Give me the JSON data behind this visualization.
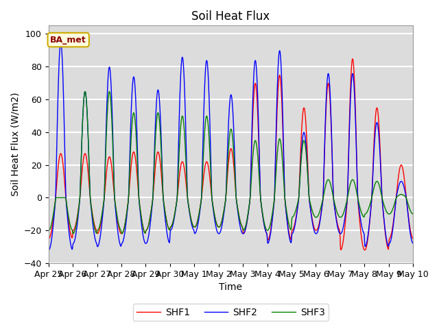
{
  "title": "Soil Heat Flux",
  "xlabel": "Time",
  "ylabel": "Soil Heat Flux (W/m2)",
  "ylim": [
    -40,
    105
  ],
  "yticks": [
    -40,
    -20,
    0,
    20,
    40,
    60,
    80,
    100
  ],
  "xtick_labels": [
    "Apr 25",
    "Apr 26",
    "Apr 27",
    "Apr 28",
    "Apr 29",
    "Apr 30",
    "May 1",
    "May 2",
    "May 3",
    "May 4",
    "May 5",
    "May 6",
    "May 7",
    "May 8",
    "May 9",
    "May 10"
  ],
  "annotation": "BA_met",
  "legend_entries": [
    "SHF1",
    "SHF2",
    "SHF3"
  ],
  "line_colors": [
    "red",
    "blue",
    "green"
  ],
  "background_color": "#dcdcdc",
  "grid_color": "white",
  "title_fontsize": 12,
  "label_fontsize": 10,
  "tick_fontsize": 9
}
